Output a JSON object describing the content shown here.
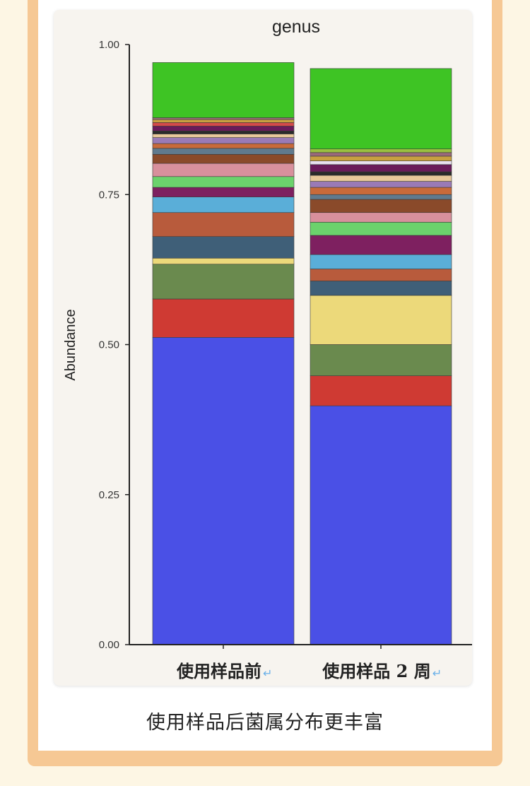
{
  "caption": "使用样品后菌属分布更丰富",
  "chart_data": {
    "type": "bar",
    "stacked": true,
    "title": "genus",
    "ylabel": "Abundance",
    "xlabel": "",
    "ylim": [
      0,
      1
    ],
    "yticks": [
      "0.00",
      "0.25",
      "0.50",
      "0.75",
      "1.00"
    ],
    "categories": [
      "使用样品前",
      "使用样品 2 周"
    ],
    "category_marks": [
      "↵",
      "↵"
    ],
    "bars": [
      {
        "category": "使用样品前",
        "segments": [
          {
            "color": "#4a50e6",
            "value": 0.512
          },
          {
            "color": "#cf3a33",
            "value": 0.064
          },
          {
            "color": "#6a8a4e",
            "value": 0.058
          },
          {
            "color": "#ecd97a",
            "value": 0.01
          },
          {
            "color": "#3f5f78",
            "value": 0.036
          },
          {
            "color": "#b85b3c",
            "value": 0.04
          },
          {
            "color": "#5aaed8",
            "value": 0.026
          },
          {
            "color": "#7e2060",
            "value": 0.016
          },
          {
            "color": "#6bd26c",
            "value": 0.018
          },
          {
            "color": "#d8909c",
            "value": 0.022
          },
          {
            "color": "#8a4a2a",
            "value": 0.015
          },
          {
            "color": "#607a8e",
            "value": 0.01
          },
          {
            "color": "#c86a3a",
            "value": 0.008
          },
          {
            "color": "#9a7ab6",
            "value": 0.01
          },
          {
            "color": "#e8c89a",
            "value": 0.006
          },
          {
            "color": "#2a2a2a",
            "value": 0.005
          },
          {
            "color": "#6a1a5a",
            "value": 0.008
          },
          {
            "color": "#d44a4a",
            "value": 0.006
          },
          {
            "color": "#c8a040",
            "value": 0.005
          },
          {
            "color": "#9a6a7a",
            "value": 0.003
          },
          {
            "color": "#3ec424",
            "value": 0.092
          }
        ]
      },
      {
        "category": "使用样品 2 周",
        "segments": [
          {
            "color": "#4a50e6",
            "value": 0.398
          },
          {
            "color": "#cf3a33",
            "value": 0.05
          },
          {
            "color": "#6a8a4e",
            "value": 0.052
          },
          {
            "color": "#ecd97a",
            "value": 0.082
          },
          {
            "color": "#3f5f78",
            "value": 0.024
          },
          {
            "color": "#b85b3c",
            "value": 0.02
          },
          {
            "color": "#5aaed8",
            "value": 0.024
          },
          {
            "color": "#7e2060",
            "value": 0.032
          },
          {
            "color": "#6bd26c",
            "value": 0.022
          },
          {
            "color": "#d8909c",
            "value": 0.016
          },
          {
            "color": "#8a4a2a",
            "value": 0.022
          },
          {
            "color": "#607a8e",
            "value": 0.008
          },
          {
            "color": "#c86a3a",
            "value": 0.012
          },
          {
            "color": "#9a7ab6",
            "value": 0.01
          },
          {
            "color": "#e8c89a",
            "value": 0.01
          },
          {
            "color": "#2a2a2a",
            "value": 0.006
          },
          {
            "color": "#6a1a5a",
            "value": 0.012
          },
          {
            "color": "#e8e0f0",
            "value": 0.006
          },
          {
            "color": "#c8a040",
            "value": 0.008
          },
          {
            "color": "#9a6a7a",
            "value": 0.006
          },
          {
            "color": "#9ac040",
            "value": 0.006
          },
          {
            "color": "#3ec424",
            "value": 0.134
          }
        ]
      }
    ]
  }
}
